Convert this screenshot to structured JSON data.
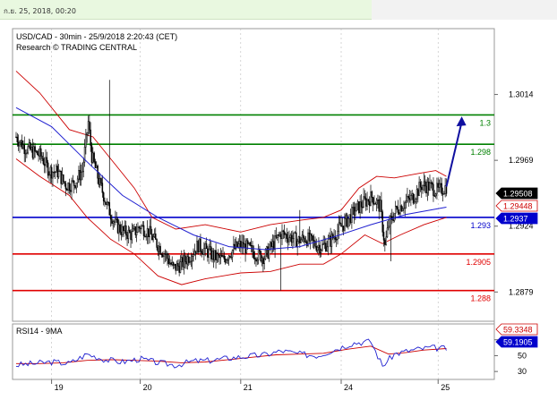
{
  "header": {
    "timestamp": "ก.ย. 25, 2018, 00:20"
  },
  "chart_data": {
    "type": "candlestick",
    "title": "USD/CAD - 30min - 25/9/2018 2:20:43 (CET)",
    "subtitle": "Research © TRADING CENTRAL",
    "price_axis": {
      "ylim": [
        1.2859,
        1.3059
      ],
      "ticks": [
        "1.3014",
        "1.2969",
        "1.2924",
        "1.2879"
      ]
    },
    "x_ticks": [
      "19",
      "20",
      "21",
      "24",
      "25"
    ],
    "levels": [
      {
        "label": "1.3",
        "value": 1.3,
        "color": "#008000"
      },
      {
        "label": "1.298",
        "value": 1.298,
        "color": "#008000"
      },
      {
        "label": "1.293",
        "value": 1.293,
        "color": "#0000cc"
      },
      {
        "label": "1.2905",
        "value": 1.2905,
        "color": "#e00000"
      },
      {
        "label": "1.288",
        "value": 1.288,
        "color": "#e00000"
      }
    ],
    "price_badges": [
      {
        "label": "1.29508",
        "value": 1.29508,
        "bg": "#000000",
        "fg": "#ffffff"
      },
      {
        "label": "1.29448",
        "value": 1.29448,
        "bg": "#ffffff",
        "fg": "#cc0000"
      },
      {
        "label": "1.2937",
        "value": 1.2937,
        "bg": "#0000cc",
        "fg": "#ffffff"
      }
    ],
    "close_path": [
      [
        0,
        1.2985
      ],
      [
        7,
        1.2978
      ],
      [
        14,
        1.2975
      ],
      [
        21,
        1.2972
      ],
      [
        28,
        1.2962
      ],
      [
        35,
        1.2961
      ],
      [
        42,
        1.2952
      ],
      [
        49,
        1.2953
      ],
      [
        56,
        1.2962
      ],
      [
        61,
        1.2995
      ],
      [
        64,
        1.2972
      ],
      [
        70,
        1.2955
      ],
      [
        77,
        1.2938
      ],
      [
        84,
        1.2925
      ],
      [
        91,
        1.292
      ],
      [
        98,
        1.2918
      ],
      [
        105,
        1.2924
      ],
      [
        112,
        1.292
      ],
      [
        119,
        1.2912
      ],
      [
        126,
        1.2905
      ],
      [
        133,
        1.2895
      ],
      [
        140,
        1.2898
      ],
      [
        147,
        1.2904
      ],
      [
        154,
        1.2911
      ],
      [
        161,
        1.2907
      ],
      [
        168,
        1.2903
      ],
      [
        175,
        1.2901
      ],
      [
        182,
        1.2907
      ],
      [
        189,
        1.2911
      ],
      [
        196,
        1.2909
      ],
      [
        203,
        1.2905
      ],
      [
        210,
        1.2903
      ],
      [
        217,
        1.2911
      ],
      [
        224,
        1.2919
      ],
      [
        231,
        1.2917
      ],
      [
        238,
        1.2914
      ],
      [
        245,
        1.2916
      ],
      [
        252,
        1.2912
      ],
      [
        259,
        1.291
      ],
      [
        266,
        1.2914
      ],
      [
        273,
        1.2922
      ],
      [
        280,
        1.2928
      ],
      [
        287,
        1.2935
      ],
      [
        294,
        1.294
      ],
      [
        301,
        1.2944
      ],
      [
        308,
        1.2937
      ],
      [
        312,
        1.291
      ],
      [
        315,
        1.2925
      ],
      [
        322,
        1.2936
      ],
      [
        329,
        1.294
      ],
      [
        336,
        1.2944
      ],
      [
        343,
        1.2952
      ],
      [
        350,
        1.2951
      ],
      [
        357,
        1.2948
      ],
      [
        364,
        1.2951
      ]
    ],
    "moving_average": [
      [
        0,
        1.3005
      ],
      [
        30,
        1.2992
      ],
      [
        60,
        1.2968
      ],
      [
        90,
        1.2945
      ],
      [
        120,
        1.293
      ],
      [
        150,
        1.2918
      ],
      [
        180,
        1.291
      ],
      [
        210,
        1.2908
      ],
      [
        240,
        1.291
      ],
      [
        270,
        1.2917
      ],
      [
        300,
        1.2925
      ],
      [
        330,
        1.2932
      ],
      [
        364,
        1.2937
      ]
    ],
    "bollinger_upper": [
      [
        0,
        1.303
      ],
      [
        20,
        1.3015
      ],
      [
        45,
        1.299
      ],
      [
        65,
        1.2985
      ],
      [
        80,
        1.297
      ],
      [
        100,
        1.295
      ],
      [
        115,
        1.293
      ],
      [
        135,
        1.2922
      ],
      [
        160,
        1.2925
      ],
      [
        190,
        1.292
      ],
      [
        215,
        1.2925
      ],
      [
        240,
        1.2928
      ],
      [
        260,
        1.293
      ],
      [
        275,
        1.2935
      ],
      [
        290,
        1.295
      ],
      [
        305,
        1.2958
      ],
      [
        320,
        1.2957
      ],
      [
        340,
        1.296
      ],
      [
        355,
        1.2962
      ],
      [
        364,
        1.2958
      ]
    ],
    "bollinger_lower": [
      [
        0,
        1.297
      ],
      [
        20,
        1.2958
      ],
      [
        45,
        1.2945
      ],
      [
        60,
        1.293
      ],
      [
        80,
        1.2915
      ],
      [
        100,
        1.2905
      ],
      [
        120,
        1.289
      ],
      [
        140,
        1.2884
      ],
      [
        160,
        1.2888
      ],
      [
        190,
        1.2892
      ],
      [
        215,
        1.2893
      ],
      [
        240,
        1.2898
      ],
      [
        260,
        1.2898
      ],
      [
        275,
        1.2905
      ],
      [
        295,
        1.2918
      ],
      [
        310,
        1.2912
      ],
      [
        325,
        1.2918
      ],
      [
        345,
        1.2925
      ],
      [
        364,
        1.293
      ]
    ],
    "forecast_arrow": [
      [
        364,
        1.2951
      ],
      [
        377,
        1.2999
      ]
    ],
    "rsi": {
      "label": "RSI14 - 9MA",
      "ylim": [
        20,
        90
      ],
      "ticks": [
        "70",
        "50",
        "30"
      ],
      "badges": [
        {
          "label": "59.3348",
          "value": 59.3348,
          "bg": "#ffffff",
          "fg": "#cc0000"
        },
        {
          "label": "59.1905",
          "value": 59.1905,
          "bg": "#0000cc",
          "fg": "#ffffff"
        }
      ],
      "values": [
        [
          0,
          38
        ],
        [
          15,
          40
        ],
        [
          30,
          42
        ],
        [
          45,
          40
        ],
        [
          60,
          52
        ],
        [
          75,
          45
        ],
        [
          90,
          42
        ],
        [
          105,
          46
        ],
        [
          120,
          41
        ],
        [
          135,
          38
        ],
        [
          150,
          43
        ],
        [
          165,
          44
        ],
        [
          180,
          47
        ],
        [
          195,
          49
        ],
        [
          210,
          51
        ],
        [
          225,
          56
        ],
        [
          240,
          52
        ],
        [
          255,
          50
        ],
        [
          270,
          58
        ],
        [
          285,
          66
        ],
        [
          300,
          68
        ],
        [
          310,
          37
        ],
        [
          320,
          52
        ],
        [
          335,
          57
        ],
        [
          350,
          60
        ],
        [
          364,
          59
        ]
      ],
      "ma": [
        [
          0,
          40
        ],
        [
          20,
          40
        ],
        [
          40,
          41
        ],
        [
          60,
          44
        ],
        [
          80,
          45
        ],
        [
          100,
          44
        ],
        [
          120,
          43
        ],
        [
          140,
          41
        ],
        [
          160,
          42
        ],
        [
          180,
          45
        ],
        [
          200,
          48
        ],
        [
          220,
          51
        ],
        [
          240,
          52
        ],
        [
          260,
          53
        ],
        [
          280,
          58
        ],
        [
          300,
          62
        ],
        [
          315,
          52
        ],
        [
          330,
          54
        ],
        [
          345,
          57
        ],
        [
          364,
          59
        ]
      ]
    }
  }
}
